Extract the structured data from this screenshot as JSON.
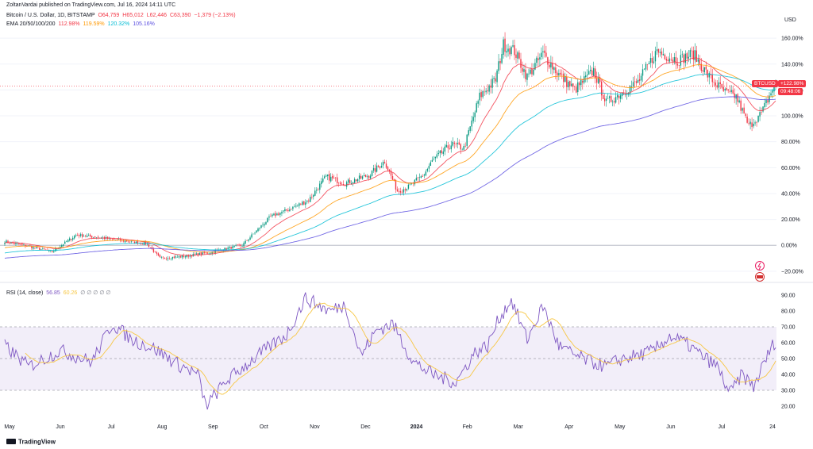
{
  "published_by": "ZoltanVardai published on TradingView.com, Jul 16, 2024 14:11 UTC",
  "symbol": {
    "name": "Bitcoin / U.S. Dollar, 1D, BITSTAMP",
    "open": "O64,759",
    "high": "H65,012",
    "low": "L62,446",
    "close": "C63,390",
    "change": "−1,379 (−2.13%)"
  },
  "ema": {
    "label": "EMA 20/50/100/200",
    "values": [
      "112.98%",
      "119.59%",
      "120.32%",
      "105.16%"
    ],
    "colors": [
      "#f23645",
      "#ff9800",
      "#00bcd4",
      "#5b4fe0"
    ]
  },
  "rsi_legend": {
    "label": "RSI (14, close)",
    "value": "56.85",
    "ma_value": "60.26",
    "extra": "∅ ∅ ∅ ∅ ∅"
  },
  "currency": "USD",
  "price_badge": {
    "symbol": "BTCUSD",
    "value": "+122.98%",
    "countdown": "09:48:06"
  },
  "watermark": "TradingView",
  "colors": {
    "up": "#089981",
    "down": "#f23645",
    "rsi_line": "#7e57c2",
    "rsi_ma": "#f7c744",
    "rsi_band": "#7e57c2",
    "grid": "#f0f3fa",
    "zero_line": "#b2b5be",
    "last_line": "#f23645"
  },
  "chart_data": [
    {
      "type": "candlestick",
      "ylabel": "",
      "scale": "percent",
      "ylim": [
        -25,
        165
      ],
      "yticks": [
        "160.00%",
        "140.00%",
        "120.00%",
        "100.00%",
        "80.00%",
        "60.00%",
        "40.00%",
        "20.00%",
        "0.00%",
        "−20.00%"
      ],
      "ytick_values": [
        160,
        140,
        120,
        100,
        80,
        60,
        40,
        20,
        0,
        -20
      ],
      "xticks": [
        "May",
        "Jun",
        "Jul",
        "Aug",
        "Sep",
        "Oct",
        "Nov",
        "Dec",
        "2024",
        "Feb",
        "Mar",
        "Apr",
        "May",
        "Jun",
        "Jul",
        "24"
      ],
      "close_anchors": [
        [
          0,
          3
        ],
        [
          12,
          0
        ],
        [
          30,
          -5
        ],
        [
          45,
          8
        ],
        [
          60,
          6
        ],
        [
          78,
          3
        ],
        [
          90,
          1
        ],
        [
          98,
          -10
        ],
        [
          110,
          -9
        ],
        [
          128,
          -6
        ],
        [
          138,
          -3
        ],
        [
          150,
          0
        ],
        [
          158,
          10
        ],
        [
          168,
          22
        ],
        [
          180,
          28
        ],
        [
          192,
          35
        ],
        [
          203,
          53
        ],
        [
          215,
          48
        ],
        [
          230,
          54
        ],
        [
          240,
          65
        ],
        [
          248,
          42
        ],
        [
          255,
          45
        ],
        [
          265,
          55
        ],
        [
          270,
          65
        ],
        [
          282,
          78
        ],
        [
          290,
          75
        ],
        [
          300,
          115
        ],
        [
          310,
          128
        ],
        [
          315,
          155
        ],
        [
          322,
          150
        ],
        [
          330,
          130
        ],
        [
          340,
          148
        ],
        [
          350,
          132
        ],
        [
          360,
          120
        ],
        [
          372,
          135
        ],
        [
          380,
          110
        ],
        [
          390,
          118
        ],
        [
          400,
          126
        ],
        [
          412,
          150
        ],
        [
          425,
          143
        ],
        [
          435,
          148
        ],
        [
          445,
          130
        ],
        [
          455,
          118
        ],
        [
          462,
          115
        ],
        [
          470,
          92
        ],
        [
          478,
          102
        ],
        [
          486,
          123
        ]
      ],
      "ema": [
        {
          "name": "EMA 20",
          "period": 20
        },
        {
          "name": "EMA 50",
          "period": 50
        },
        {
          "name": "EMA 100",
          "period": 100
        },
        {
          "name": "EMA 200",
          "period": 200
        }
      ],
      "last_value": 122.98
    },
    {
      "type": "line",
      "title": "RSI (14, close)",
      "ylim": [
        15,
        95
      ],
      "yticks": [
        "90.00",
        "80.00",
        "70.00",
        "60.00",
        "50.00",
        "40.00",
        "30.00",
        "20.00"
      ],
      "ytick_values": [
        90,
        80,
        70,
        60,
        50,
        40,
        30,
        20
      ],
      "bands": [
        70,
        50,
        30
      ],
      "rsi_anchors": [
        [
          0,
          58
        ],
        [
          15,
          45
        ],
        [
          35,
          55
        ],
        [
          55,
          48
        ],
        [
          68,
          72
        ],
        [
          80,
          62
        ],
        [
          95,
          56
        ],
        [
          110,
          46
        ],
        [
          122,
          40
        ],
        [
          127,
          20
        ],
        [
          140,
          36
        ],
        [
          160,
          52
        ],
        [
          178,
          65
        ],
        [
          190,
          88
        ],
        [
          205,
          80
        ],
        [
          215,
          84
        ],
        [
          225,
          52
        ],
        [
          235,
          68
        ],
        [
          245,
          72
        ],
        [
          258,
          48
        ],
        [
          270,
          40
        ],
        [
          285,
          35
        ],
        [
          297,
          54
        ],
        [
          305,
          58
        ],
        [
          312,
          75
        ],
        [
          320,
          87
        ],
        [
          330,
          62
        ],
        [
          340,
          83
        ],
        [
          350,
          58
        ],
        [
          360,
          52
        ],
        [
          370,
          48
        ],
        [
          380,
          45
        ],
        [
          390,
          50
        ],
        [
          400,
          52
        ],
        [
          410,
          55
        ],
        [
          420,
          64
        ],
        [
          430,
          60
        ],
        [
          440,
          52
        ],
        [
          450,
          45
        ],
        [
          458,
          28
        ],
        [
          466,
          40
        ],
        [
          473,
          32
        ],
        [
          480,
          48
        ],
        [
          486,
          60
        ],
        [
          488,
          56.85
        ]
      ],
      "last_value": 56.85
    }
  ]
}
